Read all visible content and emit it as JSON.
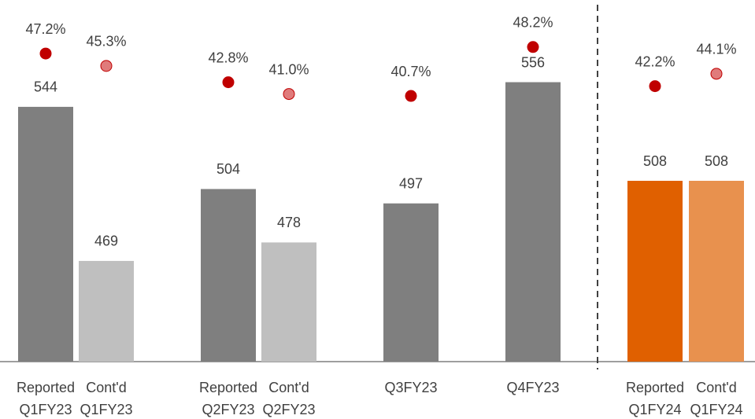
{
  "chart_data": {
    "type": "bar",
    "categories": [
      [
        "Reported",
        "Q1FY23"
      ],
      [
        "Cont'd",
        "Q1FY23"
      ],
      [
        "Reported",
        "Q2FY23"
      ],
      [
        "Cont'd",
        "Q2FY23"
      ],
      [
        "Q3FY23"
      ],
      [
        "Q4FY23"
      ],
      [
        "Reported",
        "Q1FY24"
      ],
      [
        "Cont'd",
        "Q1FY24"
      ]
    ],
    "values": [
      544,
      469,
      504,
      478,
      497,
      556,
      508,
      508
    ],
    "colors": [
      "#7f7f7f",
      "#bfbfbf",
      "#7f7f7f",
      "#bfbfbf",
      "#7f7f7f",
      "#7f7f7f",
      "#e06000",
      "#e8914e"
    ],
    "ylim": [
      420,
      596
    ],
    "margins": [
      47.2,
      45.3,
      42.8,
      41.0,
      40.7,
      48.2,
      42.2,
      44.1
    ],
    "margin_labels": [
      "47.2%",
      "45.3%",
      "42.8%",
      "41.0%",
      "40.7%",
      "48.2%",
      "42.2%",
      "44.1%"
    ],
    "margin_colors": [
      "#c00000",
      "#e07b7b",
      "#c00000",
      "#e07b7b",
      "#c00000",
      "#c00000",
      "#c00000",
      "#e07b7b"
    ],
    "y2lim": [
      0,
      55.4
    ]
  }
}
